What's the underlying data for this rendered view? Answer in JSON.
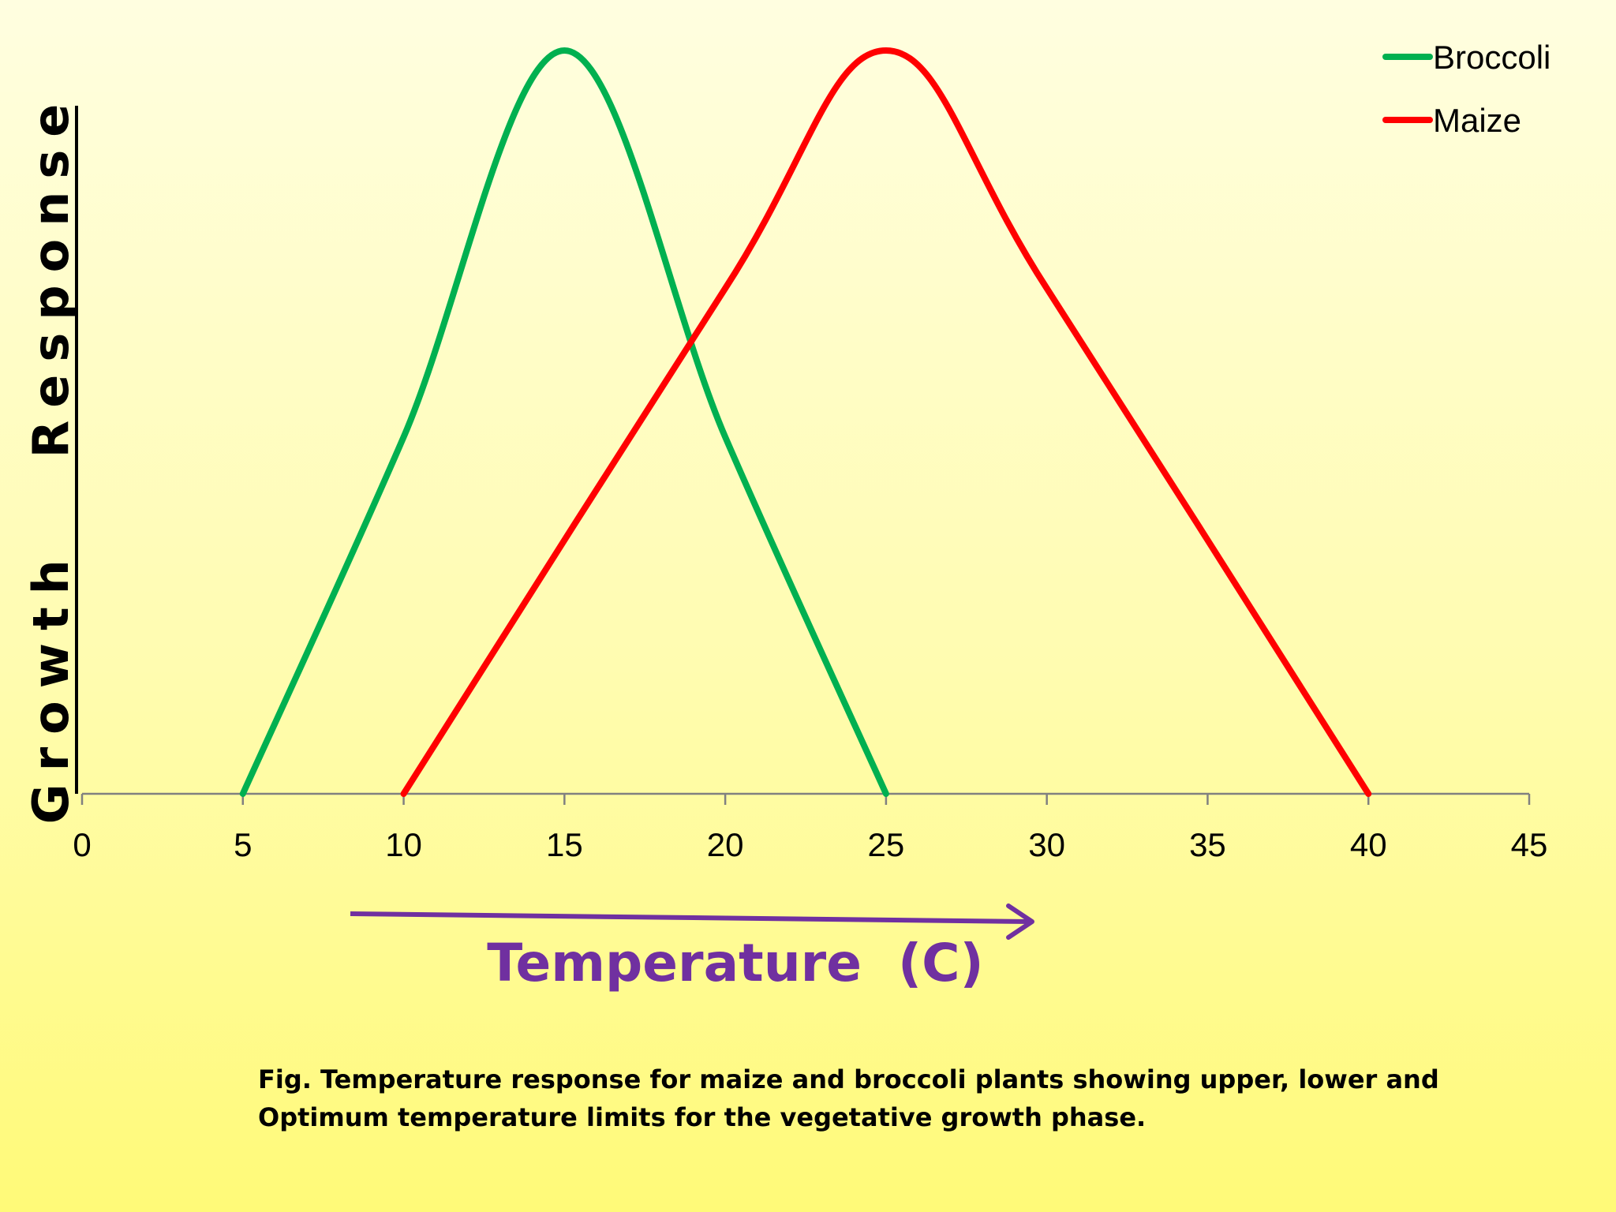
{
  "chart_data": {
    "type": "line",
    "xlabel": "Temperature  (C)",
    "ylabel": "Growth   Response",
    "xlim": [
      0,
      45
    ],
    "ylim": [
      0,
      1
    ],
    "x_ticks": [
      0,
      5,
      10,
      15,
      20,
      25,
      30,
      35,
      40,
      45
    ],
    "grid": false,
    "legend_position": "top-right",
    "series": [
      {
        "name": "Broccoli",
        "color": "#00b050",
        "points": [
          [
            5,
            0
          ],
          [
            10,
            0.48
          ],
          [
            15,
            1.0
          ],
          [
            20,
            0.48
          ],
          [
            25,
            0
          ]
        ]
      },
      {
        "name": "Maize",
        "color": "#ff0000",
        "points": [
          [
            10,
            0
          ],
          [
            20,
            0.68
          ],
          [
            25,
            1.0
          ],
          [
            30,
            0.68
          ],
          [
            40,
            0
          ]
        ]
      }
    ],
    "caption_lines": [
      "Fig.  Temperature response for maize and broccoli plants showing upper, lower and",
      "Optimum temperature limits for the vegetative growth phase."
    ],
    "arrow_color": "#7030a0"
  }
}
